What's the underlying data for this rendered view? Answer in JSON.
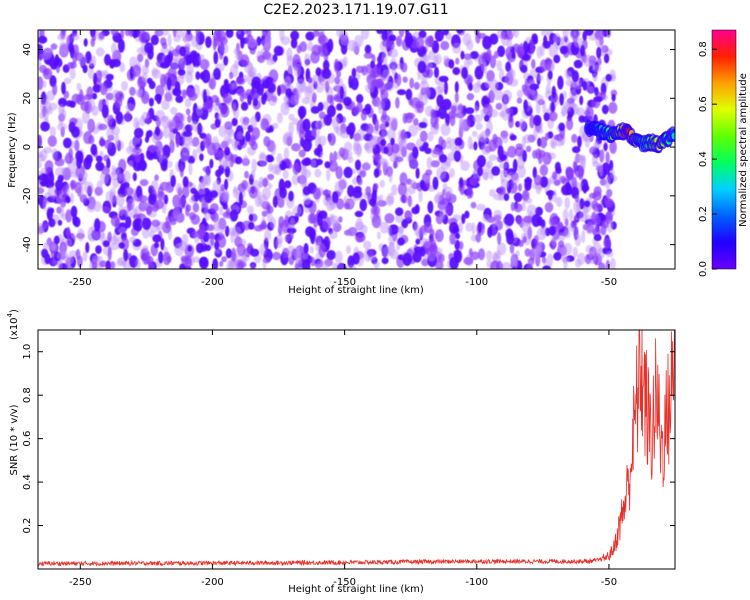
{
  "title": "C2E2.2023.171.19.07.G11",
  "chart_data": [
    {
      "type": "heatmap",
      "xlabel": "Height of straight line (km)",
      "ylabel": "Frequency (Hz)",
      "xlim": [
        -266,
        -25
      ],
      "ylim": [
        -50,
        48
      ],
      "x_ticks": [
        -250,
        -200,
        -150,
        -100,
        -50
      ],
      "y_ticks": [
        -40,
        -20,
        0,
        20,
        40
      ],
      "colorbar": {
        "label": "Normalized spectral amplitude",
        "range": [
          0.0,
          0.87
        ],
        "ticks": [
          0.0,
          0.2,
          0.4,
          0.6,
          0.8
        ],
        "colormap": [
          "#6a00ff",
          "#2000ff",
          "#0060ff",
          "#00d0ff",
          "#00ff60",
          "#60ff00",
          "#e0ff00",
          "#ffa000",
          "#ff2000",
          "#ff0090"
        ]
      },
      "description_of_content": {
        "noise_band": {
          "x_range": [
            -266,
            -48
          ],
          "amplitude": 0.05,
          "color": "#7a1fff"
        },
        "signal_band": {
          "x": [
            -58,
            -55,
            -52,
            -49,
            -46,
            -43,
            -40,
            -37,
            -34,
            -31,
            -28,
            -25
          ],
          "y": [
            8,
            7,
            6,
            5,
            7,
            6,
            3,
            1,
            2,
            1,
            3,
            6
          ],
          "amplitude": [
            0.15,
            0.18,
            0.3,
            0.45,
            0.55,
            0.85,
            0.5,
            0.35,
            0.45,
            0.6,
            0.4,
            0.3
          ]
        }
      }
    },
    {
      "type": "line",
      "xlabel": "Height of straight line (km)",
      "ylabel": "SNR (10 * v/v)",
      "y_multiplier": "(x10",
      "y_multiplier_exp": "4",
      "y_multiplier_close": ")",
      "xlim": [
        -266,
        -25
      ],
      "ylim": [
        0.0,
        1.1
      ],
      "x_ticks": [
        -250,
        -200,
        -150,
        -100,
        -50
      ],
      "y_ticks": [
        0.2,
        0.4,
        0.6,
        0.8,
        1.0
      ],
      "color": "#e8302a",
      "x": [
        -266,
        -200,
        -150,
        -100,
        -58,
        -54,
        -50,
        -48,
        -46,
        -44,
        -42,
        -40,
        -38,
        -36,
        -34,
        -32,
        -30,
        -28,
        -26,
        -25
      ],
      "y": [
        0.025,
        0.027,
        0.03,
        0.035,
        0.035,
        0.04,
        0.06,
        0.1,
        0.2,
        0.3,
        0.45,
        0.7,
        0.95,
        0.75,
        0.6,
        0.8,
        0.55,
        0.7,
        0.85,
        1.0
      ]
    }
  ]
}
